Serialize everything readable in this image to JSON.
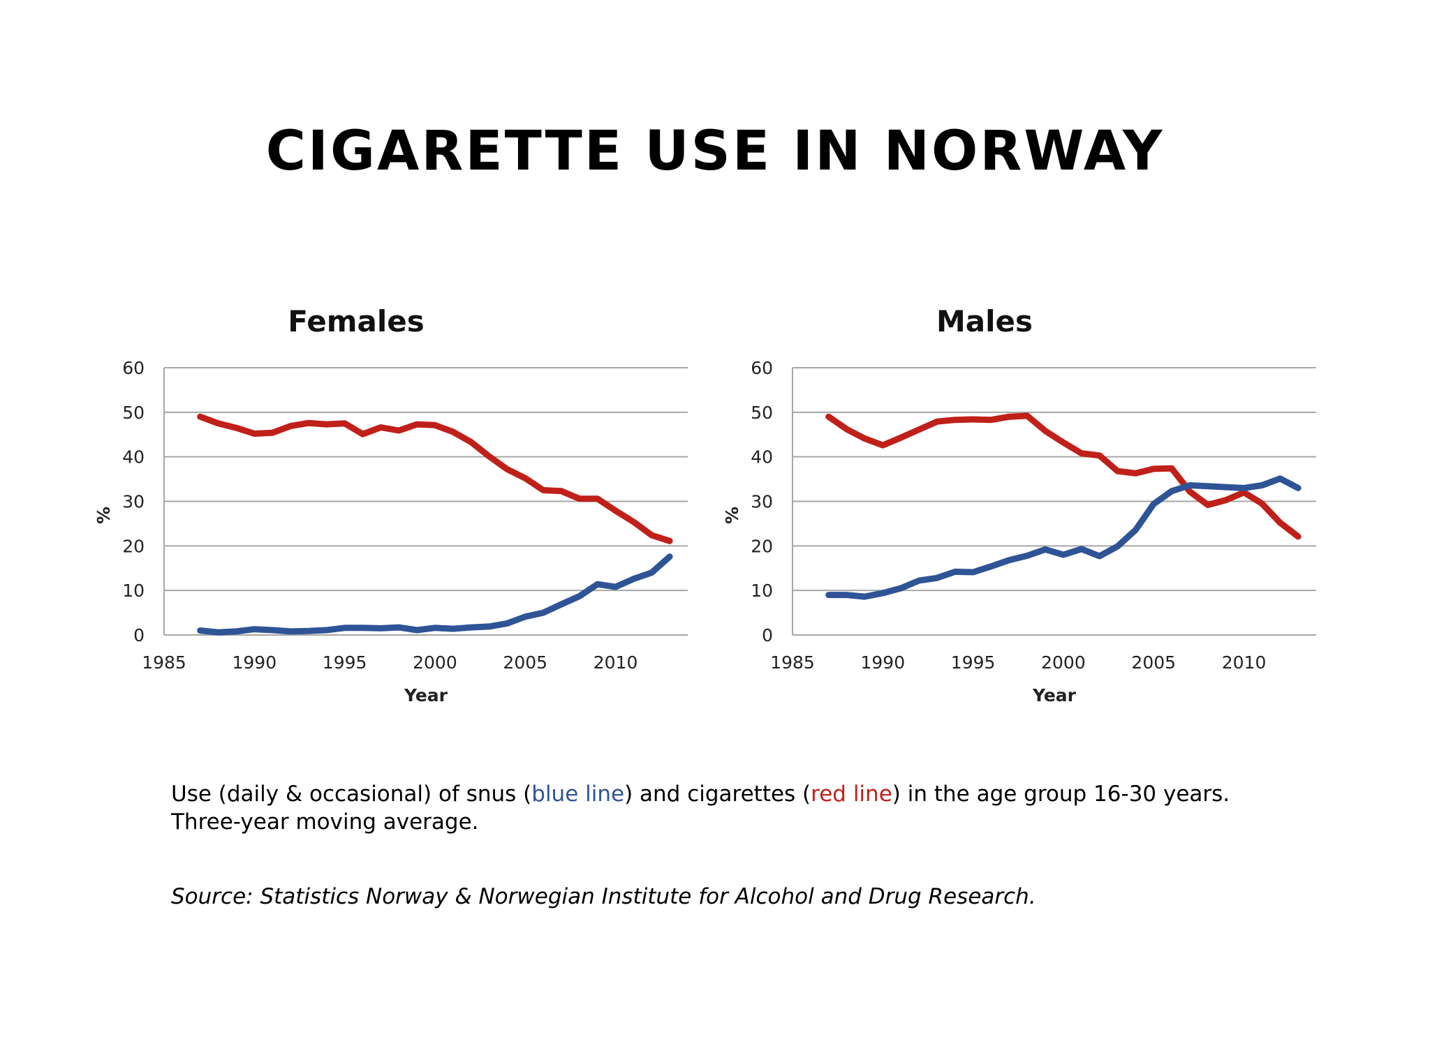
{
  "page": {
    "title": "CIGARETTE USE IN NORWAY",
    "caption": {
      "part1": "Use (daily & occasional) of snus (",
      "blue_label": "blue line",
      "part2": ") and cigarettes (",
      "red_label": "red line",
      "part3": ") in the age group 16-30 years.",
      "line2": "Three-year moving average."
    },
    "source": "Source:  Statistics Norway & Norwegian Institute for Alcohol and Drug Research."
  },
  "colors": {
    "snus": "#2f5496",
    "cigarettes": "#c0201a",
    "grid": "#a6a6a6"
  },
  "chart_data": [
    {
      "type": "line",
      "title": "Females",
      "xlabel": "Year",
      "ylabel": "%",
      "xlim": [
        1985,
        2014
      ],
      "ylim": [
        0,
        60
      ],
      "xticks": [
        1985,
        1990,
        1995,
        2000,
        2005,
        2010
      ],
      "yticks": [
        0,
        10,
        20,
        30,
        40,
        50,
        60
      ],
      "grid": true,
      "x": [
        1987,
        1988,
        1989,
        1990,
        1991,
        1992,
        1993,
        1994,
        1995,
        1996,
        1997,
        1998,
        1999,
        2000,
        2001,
        2002,
        2003,
        2004,
        2005,
        2006,
        2007,
        2008,
        2009,
        2010,
        2011,
        2012,
        2013
      ],
      "series": [
        {
          "name": "cigarettes",
          "color": "red",
          "values": [
            49,
            47.5,
            46.5,
            45.2,
            45.4,
            46.9,
            47.6,
            47.3,
            47.5,
            45.1,
            46.6,
            45.9,
            47.3,
            47.1,
            45.6,
            43.3,
            40.1,
            37.2,
            35.2,
            32.5,
            32.3,
            30.6,
            30.6,
            27.9,
            25.4,
            22.4,
            21.1
          ]
        },
        {
          "name": "snus",
          "color": "blue",
          "values": [
            1,
            0.6,
            0.8,
            1.3,
            1.1,
            0.8,
            0.9,
            1.1,
            1.6,
            1.6,
            1.5,
            1.7,
            1.1,
            1.6,
            1.4,
            1.7,
            1.9,
            2.6,
            4.1,
            5,
            6.9,
            8.7,
            11.4,
            10.8,
            12.6,
            14,
            17.6
          ]
        }
      ]
    },
    {
      "type": "line",
      "title": "Males",
      "xlabel": "Year",
      "ylabel": "%",
      "xlim": [
        1985,
        2014
      ],
      "ylim": [
        0,
        60
      ],
      "xticks": [
        1985,
        1990,
        1995,
        2000,
        2005,
        2010
      ],
      "yticks": [
        0,
        10,
        20,
        30,
        40,
        50,
        60
      ],
      "grid": true,
      "x": [
        1987,
        1988,
        1989,
        1990,
        1991,
        1992,
        1993,
        1994,
        1995,
        1996,
        1997,
        1998,
        1999,
        2000,
        2001,
        2002,
        2003,
        2004,
        2005,
        2006,
        2007,
        2008,
        2009,
        2010,
        2011,
        2012,
        2013
      ],
      "series": [
        {
          "name": "cigarettes",
          "color": "red",
          "values": [
            49,
            46.2,
            44.1,
            42.6,
            44.3,
            46.1,
            47.9,
            48.3,
            48.4,
            48.3,
            49,
            49.2,
            45.8,
            43.2,
            40.8,
            40.3,
            36.8,
            36.3,
            37.3,
            37.4,
            32.2,
            29.2,
            30.3,
            32,
            29.5,
            25.2,
            22.1
          ]
        },
        {
          "name": "snus",
          "color": "blue",
          "values": [
            9,
            9,
            8.6,
            9.4,
            10.5,
            12.2,
            12.8,
            14.2,
            14.1,
            15.4,
            16.8,
            17.8,
            19.2,
            18,
            19.3,
            17.7,
            19.9,
            23.6,
            29.4,
            32.3,
            33.6,
            33.4,
            33.2,
            33,
            33.6,
            35.1,
            33
          ]
        }
      ]
    }
  ]
}
